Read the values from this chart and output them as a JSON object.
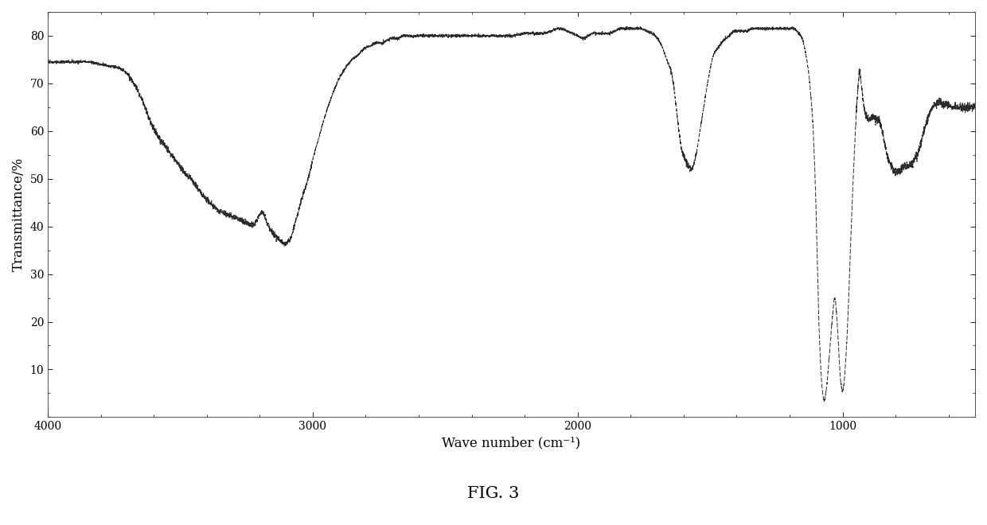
{
  "title": "FIG. 3",
  "xlabel": "Wave number (cm⁻¹)",
  "ylabel": "Transmittance/%",
  "xmin": 500,
  "xmax": 4000,
  "ymin": 0,
  "ymax": 85,
  "yticks": [
    10,
    20,
    30,
    40,
    50,
    60,
    70,
    80
  ],
  "xticks": [
    4000,
    3000,
    2000,
    1000
  ],
  "line_color": "#2a2a2a",
  "background_color": "#ffffff",
  "fig_caption": "FIG. 3",
  "keypoints": [
    [
      4000,
      74.5
    ],
    [
      3950,
      74.5
    ],
    [
      3900,
      74.5
    ],
    [
      3850,
      74.5
    ],
    [
      3800,
      74.0
    ],
    [
      3750,
      73.5
    ],
    [
      3700,
      72.0
    ],
    [
      3680,
      70.5
    ],
    [
      3660,
      68.5
    ],
    [
      3640,
      66.0
    ],
    [
      3620,
      63.0
    ],
    [
      3600,
      60.5
    ],
    [
      3580,
      58.5
    ],
    [
      3560,
      57.0
    ],
    [
      3540,
      55.5
    ],
    [
      3520,
      54.0
    ],
    [
      3500,
      52.5
    ],
    [
      3480,
      51.0
    ],
    [
      3460,
      50.0
    ],
    [
      3440,
      48.5
    ],
    [
      3420,
      47.0
    ],
    [
      3400,
      45.5
    ],
    [
      3380,
      44.5
    ],
    [
      3360,
      43.5
    ],
    [
      3340,
      43.0
    ],
    [
      3320,
      42.5
    ],
    [
      3300,
      42.0
    ],
    [
      3280,
      41.5
    ],
    [
      3260,
      41.0
    ],
    [
      3240,
      40.5
    ],
    [
      3220,
      40.5
    ],
    [
      3200,
      42.5
    ],
    [
      3190,
      43.0
    ],
    [
      3180,
      42.0
    ],
    [
      3170,
      40.5
    ],
    [
      3160,
      39.5
    ],
    [
      3150,
      38.5
    ],
    [
      3140,
      38.0
    ],
    [
      3130,
      37.5
    ],
    [
      3120,
      37.0
    ],
    [
      3110,
      36.5
    ],
    [
      3100,
      36.5
    ],
    [
      3090,
      37.0
    ],
    [
      3080,
      38.0
    ],
    [
      3070,
      40.0
    ],
    [
      3060,
      42.0
    ],
    [
      3050,
      44.0
    ],
    [
      3040,
      46.0
    ],
    [
      3020,
      49.5
    ],
    [
      3000,
      54.0
    ],
    [
      2980,
      58.0
    ],
    [
      2960,
      62.0
    ],
    [
      2940,
      65.5
    ],
    [
      2920,
      68.5
    ],
    [
      2900,
      71.0
    ],
    [
      2880,
      73.0
    ],
    [
      2860,
      74.5
    ],
    [
      2840,
      75.5
    ],
    [
      2820,
      76.5
    ],
    [
      2800,
      77.5
    ],
    [
      2780,
      78.0
    ],
    [
      2760,
      78.5
    ],
    [
      2740,
      78.5
    ],
    [
      2720,
      79.0
    ],
    [
      2700,
      79.5
    ],
    [
      2680,
      79.5
    ],
    [
      2660,
      80.0
    ],
    [
      2640,
      80.0
    ],
    [
      2600,
      80.0
    ],
    [
      2550,
      80.0
    ],
    [
      2500,
      80.0
    ],
    [
      2450,
      80.0
    ],
    [
      2400,
      80.0
    ],
    [
      2350,
      80.0
    ],
    [
      2300,
      80.0
    ],
    [
      2250,
      80.0
    ],
    [
      2200,
      80.5
    ],
    [
      2150,
      80.5
    ],
    [
      2100,
      81.0
    ],
    [
      2080,
      81.5
    ],
    [
      2060,
      81.5
    ],
    [
      2040,
      81.0
    ],
    [
      2020,
      80.5
    ],
    [
      2000,
      80.0
    ],
    [
      1980,
      79.5
    ],
    [
      1960,
      80.0
    ],
    [
      1940,
      80.5
    ],
    [
      1920,
      80.5
    ],
    [
      1900,
      80.5
    ],
    [
      1880,
      80.5
    ],
    [
      1860,
      81.0
    ],
    [
      1840,
      81.5
    ],
    [
      1820,
      81.5
    ],
    [
      1800,
      81.5
    ],
    [
      1780,
      81.5
    ],
    [
      1760,
      81.5
    ],
    [
      1740,
      81.0
    ],
    [
      1720,
      80.5
    ],
    [
      1700,
      79.5
    ],
    [
      1680,
      77.5
    ],
    [
      1660,
      74.5
    ],
    [
      1640,
      70.5
    ],
    [
      1630,
      66.0
    ],
    [
      1620,
      61.0
    ],
    [
      1610,
      57.0
    ],
    [
      1600,
      55.0
    ],
    [
      1590,
      53.5
    ],
    [
      1580,
      52.5
    ],
    [
      1570,
      52.0
    ],
    [
      1560,
      53.5
    ],
    [
      1550,
      56.0
    ],
    [
      1540,
      59.5
    ],
    [
      1530,
      63.0
    ],
    [
      1520,
      66.5
    ],
    [
      1510,
      70.0
    ],
    [
      1500,
      73.0
    ],
    [
      1490,
      75.5
    ],
    [
      1470,
      77.5
    ],
    [
      1450,
      79.0
    ],
    [
      1430,
      80.0
    ],
    [
      1420,
      80.5
    ],
    [
      1410,
      81.0
    ],
    [
      1400,
      81.0
    ],
    [
      1380,
      81.0
    ],
    [
      1360,
      81.0
    ],
    [
      1340,
      81.5
    ],
    [
      1320,
      81.5
    ],
    [
      1300,
      81.5
    ],
    [
      1280,
      81.5
    ],
    [
      1260,
      81.5
    ],
    [
      1240,
      81.5
    ],
    [
      1220,
      81.5
    ],
    [
      1200,
      81.5
    ],
    [
      1180,
      81.5
    ],
    [
      1165,
      80.5
    ],
    [
      1150,
      79.0
    ],
    [
      1140,
      76.5
    ],
    [
      1130,
      73.0
    ],
    [
      1120,
      67.5
    ],
    [
      1110,
      59.0
    ],
    [
      1105,
      52.0
    ],
    [
      1100,
      43.0
    ],
    [
      1095,
      32.0
    ],
    [
      1090,
      21.0
    ],
    [
      1085,
      13.5
    ],
    [
      1080,
      8.0
    ],
    [
      1075,
      5.0
    ],
    [
      1070,
      3.5
    ],
    [
      1065,
      4.5
    ],
    [
      1060,
      6.5
    ],
    [
      1055,
      9.5
    ],
    [
      1050,
      13.0
    ],
    [
      1045,
      16.5
    ],
    [
      1040,
      20.0
    ],
    [
      1035,
      23.0
    ],
    [
      1030,
      25.0
    ],
    [
      1025,
      23.0
    ],
    [
      1020,
      19.5
    ],
    [
      1015,
      14.5
    ],
    [
      1010,
      9.5
    ],
    [
      1005,
      6.5
    ],
    [
      1000,
      5.5
    ],
    [
      995,
      7.0
    ],
    [
      990,
      10.5
    ],
    [
      985,
      15.0
    ],
    [
      980,
      21.0
    ],
    [
      975,
      28.0
    ],
    [
      970,
      36.0
    ],
    [
      965,
      43.0
    ],
    [
      960,
      50.0
    ],
    [
      955,
      56.0
    ],
    [
      950,
      62.0
    ],
    [
      945,
      67.0
    ],
    [
      940,
      70.5
    ],
    [
      935,
      72.5
    ],
    [
      930,
      70.0
    ],
    [
      925,
      67.5
    ],
    [
      920,
      65.5
    ],
    [
      915,
      64.0
    ],
    [
      910,
      63.0
    ],
    [
      905,
      62.5
    ],
    [
      900,
      62.5
    ],
    [
      890,
      63.0
    ],
    [
      880,
      63.0
    ],
    [
      870,
      62.5
    ],
    [
      860,
      62.0
    ],
    [
      850,
      60.0
    ],
    [
      840,
      57.0
    ],
    [
      830,
      54.5
    ],
    [
      820,
      53.0
    ],
    [
      810,
      52.0
    ],
    [
      800,
      51.5
    ],
    [
      790,
      51.5
    ],
    [
      780,
      52.0
    ],
    [
      770,
      52.5
    ],
    [
      760,
      52.5
    ],
    [
      750,
      53.0
    ],
    [
      740,
      53.0
    ],
    [
      730,
      54.0
    ],
    [
      720,
      55.0
    ],
    [
      710,
      56.5
    ],
    [
      700,
      58.5
    ],
    [
      690,
      60.5
    ],
    [
      680,
      62.5
    ],
    [
      670,
      64.0
    ],
    [
      660,
      65.0
    ],
    [
      650,
      65.5
    ],
    [
      640,
      66.0
    ],
    [
      630,
      66.0
    ],
    [
      620,
      65.5
    ],
    [
      610,
      65.5
    ],
    [
      600,
      65.5
    ],
    [
      590,
      65.0
    ],
    [
      580,
      65.0
    ],
    [
      570,
      65.0
    ],
    [
      560,
      65.0
    ],
    [
      550,
      65.0
    ],
    [
      540,
      65.0
    ],
    [
      530,
      65.0
    ],
    [
      520,
      65.0
    ],
    [
      510,
      65.0
    ],
    [
      500,
      65.0
    ]
  ]
}
